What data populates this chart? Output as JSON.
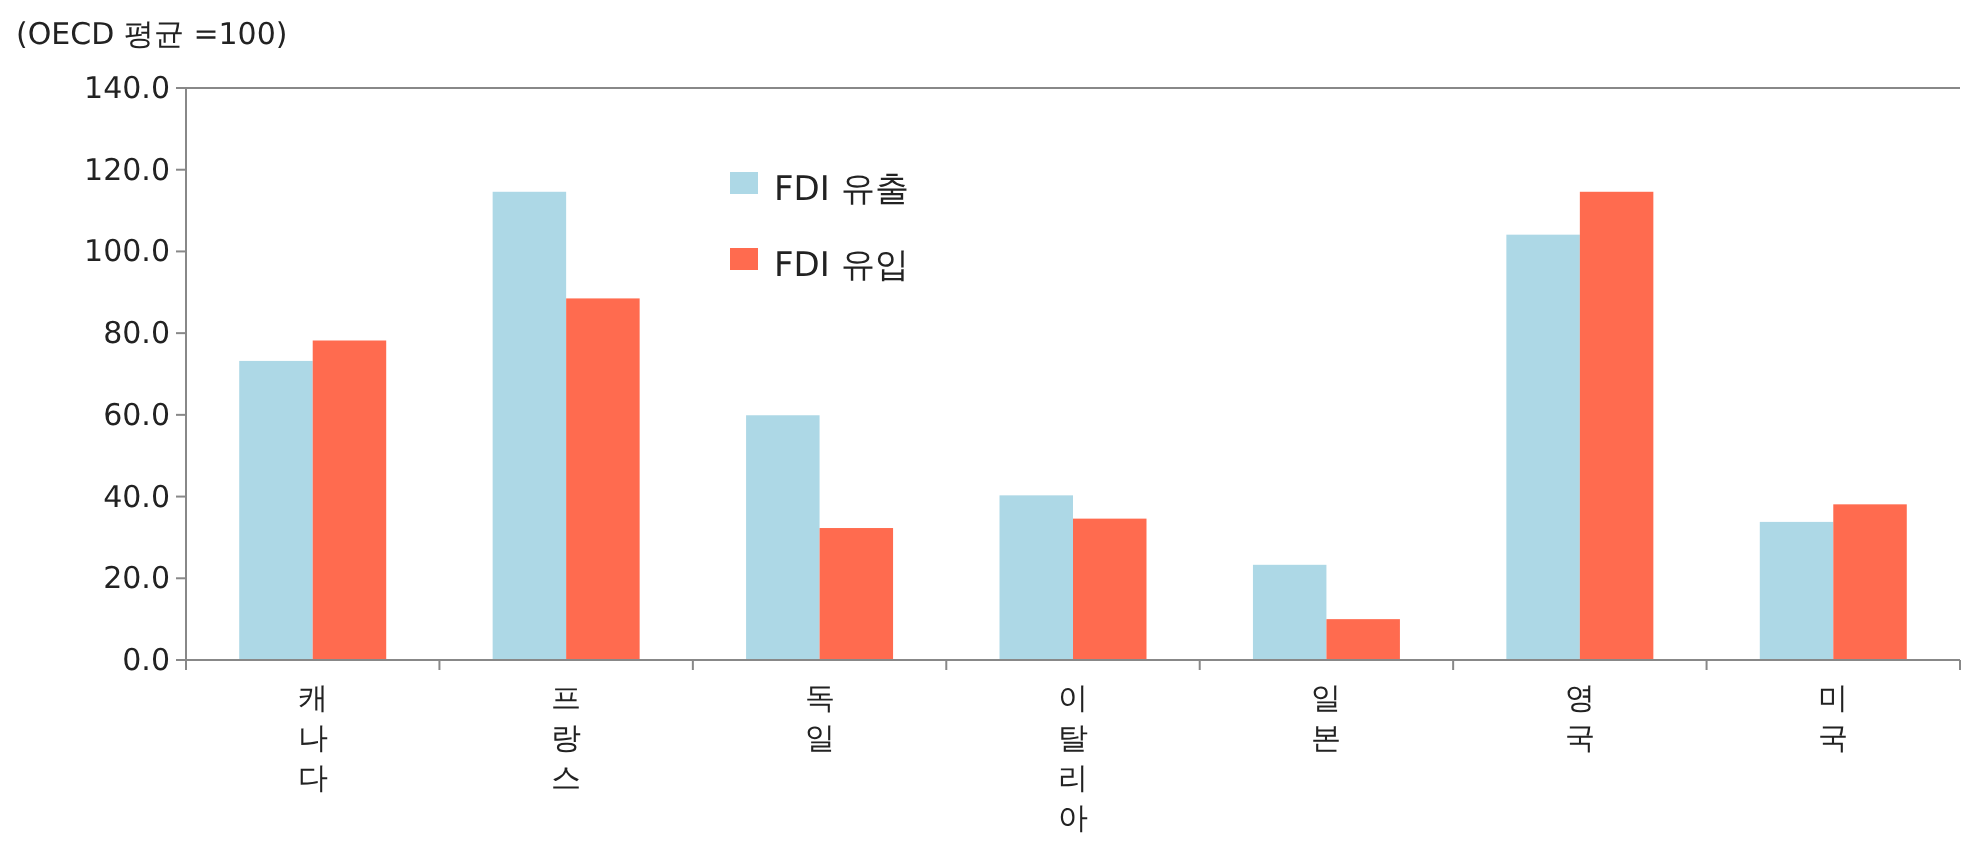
{
  "chart_data": {
    "type": "bar",
    "ylabel": "(OECD 평균 =100)",
    "categories": [
      "캐나다",
      "프랑스",
      "독일",
      "이탈리아",
      "일본",
      "영국",
      "미국"
    ],
    "series": [
      {
        "name": "FDI 유출",
        "color": "#add8e6",
        "values": [
          73.2,
          114.6,
          59.9,
          40.3,
          23.3,
          104.1,
          33.8
        ]
      },
      {
        "name": "FDI 유입",
        "color": "#ff6b4f",
        "values": [
          78.2,
          88.5,
          32.3,
          34.6,
          10.0,
          114.6,
          38.1
        ]
      }
    ],
    "ylim": [
      0,
      140
    ],
    "yticks": [
      {
        "value": 0,
        "label": "0.0"
      },
      {
        "value": 20,
        "label": "20.0"
      },
      {
        "value": 40,
        "label": "40.0"
      },
      {
        "value": 60,
        "label": "60.0"
      },
      {
        "value": 80,
        "label": "80.0"
      },
      {
        "value": 100,
        "label": "100.0"
      },
      {
        "value": 120,
        "label": "120.0"
      },
      {
        "value": 140,
        "label": "140.0"
      }
    ],
    "legend": "top left",
    "grid": false
  }
}
